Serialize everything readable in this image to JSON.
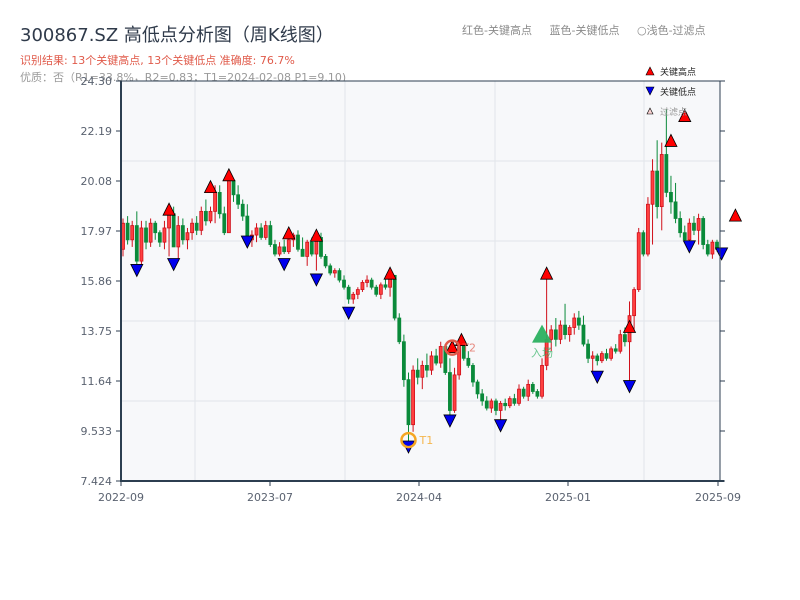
{
  "header": {
    "title": "300867.SZ 高低点分析图（周K线图）",
    "result_line": "识别结果: 13个关键高点, 13个关键低点   准确度: 76.7%",
    "quality_line": "优质：否（R1=33.8%，R2=0.83；T1=2024-02-08 P1=9.10)"
  },
  "top_legend": {
    "items": [
      "红色-关键高点",
      "蓝色-关键低点",
      "○浅色-过滤点"
    ]
  },
  "plot_legend": {
    "items": [
      {
        "label": "关键高点",
        "marker": "triangle-up",
        "color": "#ff0000"
      },
      {
        "label": "关键低点",
        "marker": "triangle-down",
        "color": "#0000ee"
      },
      {
        "label": "过滤点",
        "marker": "triangle-up-outline",
        "color": "#f4b4b4"
      }
    ]
  },
  "colors": {
    "up": "#d0101a",
    "down": "#0a8a3a",
    "grid": "#e2e5ea",
    "plot_bg": "#f7f8fa",
    "axis": "#2c3e50",
    "t1": "#f5a623",
    "t2": "#e05a4a",
    "entry": "#2bb060"
  },
  "annotations": {
    "t1_label": "T1",
    "t2_label": "T2",
    "entry_label": "入场"
  },
  "chart_data": {
    "type": "candlestick",
    "title": "300867.SZ 高低点分析图（周K线图）",
    "xlabel": "",
    "ylabel": "",
    "ylim": [
      7.424,
      24.3
    ],
    "yticks": [
      "24.30",
      "22.19",
      "20.08",
      "17.97",
      "15.86",
      "13.75",
      "11.64",
      "9.533",
      "7.424"
    ],
    "xticks": [
      "2022-09",
      "2023-07",
      "2024-04",
      "2025-01",
      "2025-09"
    ],
    "grid": true,
    "legend_position": "upper right",
    "candles_note": "weekly OHLC approximations [open, high, low, close], x index 0..N",
    "candles": [
      [
        17.2,
        18.5,
        16.9,
        18.3
      ],
      [
        18.3,
        18.6,
        17.4,
        17.6
      ],
      [
        17.6,
        18.4,
        17.3,
        18.2
      ],
      [
        18.2,
        18.8,
        16.4,
        16.7
      ],
      [
        16.7,
        18.4,
        16.5,
        18.1
      ],
      [
        18.1,
        18.4,
        17.2,
        17.5
      ],
      [
        17.5,
        18.5,
        17.3,
        18.3
      ],
      [
        18.3,
        18.4,
        17.6,
        17.9
      ],
      [
        17.9,
        18.0,
        17.3,
        17.5
      ],
      [
        17.5,
        18.4,
        17.2,
        18.1
      ],
      [
        18.1,
        19.0,
        16.9,
        18.7
      ],
      [
        18.7,
        19.0,
        17.5,
        17.3
      ],
      [
        17.3,
        18.6,
        16.7,
        18.2
      ],
      [
        18.2,
        18.5,
        17.4,
        17.6
      ],
      [
        17.6,
        18.1,
        17.2,
        17.9
      ],
      [
        17.9,
        18.5,
        17.6,
        18.3
      ],
      [
        18.3,
        18.6,
        17.8,
        18.0
      ],
      [
        18.0,
        19.0,
        17.8,
        18.8
      ],
      [
        18.8,
        19.3,
        18.2,
        18.4
      ],
      [
        18.4,
        19.0,
        18.3,
        18.8
      ],
      [
        18.8,
        19.9,
        18.3,
        19.6
      ],
      [
        19.6,
        19.9,
        18.5,
        18.7
      ],
      [
        18.7,
        19.0,
        17.8,
        17.9
      ],
      [
        17.9,
        20.4,
        17.9,
        20.1
      ],
      [
        20.1,
        20.2,
        19.2,
        19.5
      ],
      [
        19.5,
        19.9,
        18.9,
        19.1
      ],
      [
        19.1,
        19.3,
        18.4,
        18.6
      ],
      [
        18.6,
        19.1,
        17.5,
        17.6
      ],
      [
        17.6,
        18.0,
        17.3,
        17.8
      ],
      [
        17.8,
        18.3,
        17.5,
        18.1
      ],
      [
        18.1,
        18.3,
        17.6,
        17.7
      ],
      [
        17.7,
        18.4,
        17.6,
        18.2
      ],
      [
        18.2,
        18.4,
        17.3,
        17.4
      ],
      [
        17.4,
        17.6,
        16.9,
        17.0
      ],
      [
        17.0,
        17.5,
        16.9,
        17.3
      ],
      [
        17.3,
        17.6,
        17.0,
        17.1
      ],
      [
        17.1,
        17.8,
        17.0,
        17.6
      ],
      [
        17.6,
        17.9,
        17.3,
        17.8
      ],
      [
        17.8,
        18.0,
        17.1,
        17.2
      ],
      [
        17.2,
        17.7,
        16.9,
        16.9
      ],
      [
        16.9,
        17.6,
        16.5,
        17.5
      ],
      [
        17.5,
        17.7,
        16.9,
        17.0
      ],
      [
        17.0,
        17.9,
        16.3,
        17.7
      ],
      [
        17.7,
        17.9,
        16.8,
        16.9
      ],
      [
        16.9,
        17.0,
        16.4,
        16.5
      ],
      [
        16.5,
        16.6,
        16.1,
        16.2
      ],
      [
        16.2,
        16.4,
        16.0,
        16.3
      ],
      [
        16.3,
        16.4,
        15.8,
        15.9
      ],
      [
        15.9,
        16.1,
        15.5,
        15.6
      ],
      [
        15.6,
        15.7,
        14.9,
        15.1
      ],
      [
        15.1,
        15.4,
        14.9,
        15.3
      ],
      [
        15.3,
        15.6,
        15.1,
        15.5
      ],
      [
        15.5,
        15.9,
        15.4,
        15.8
      ],
      [
        15.8,
        16.1,
        15.6,
        15.9
      ],
      [
        15.9,
        16.0,
        15.5,
        15.6
      ],
      [
        15.6,
        15.7,
        15.2,
        15.3
      ],
      [
        15.3,
        15.8,
        15.1,
        15.7
      ],
      [
        15.7,
        16.0,
        15.5,
        15.6
      ],
      [
        15.6,
        16.2,
        15.2,
        16.1
      ],
      [
        16.1,
        16.1,
        14.2,
        14.3
      ],
      [
        14.3,
        14.5,
        13.2,
        13.3
      ],
      [
        13.3,
        13.6,
        11.4,
        11.7
      ],
      [
        11.7,
        12.0,
        9.1,
        9.8
      ],
      [
        9.8,
        12.3,
        9.5,
        12.1
      ],
      [
        12.1,
        12.6,
        11.5,
        11.8
      ],
      [
        11.8,
        12.5,
        11.3,
        12.3
      ],
      [
        12.3,
        12.8,
        11.8,
        12.1
      ],
      [
        12.1,
        12.9,
        11.9,
        12.7
      ],
      [
        12.7,
        13.0,
        12.3,
        12.4
      ],
      [
        12.4,
        13.3,
        12.2,
        13.1
      ],
      [
        13.1,
        13.2,
        11.9,
        12.0
      ],
      [
        12.0,
        12.6,
        10.2,
        10.4
      ],
      [
        10.4,
        12.2,
        10.3,
        11.9
      ],
      [
        11.9,
        13.4,
        11.7,
        13.2
      ],
      [
        13.2,
        13.3,
        12.5,
        12.6
      ],
      [
        12.6,
        12.9,
        12.2,
        12.3
      ],
      [
        12.3,
        12.4,
        11.4,
        11.6
      ],
      [
        11.6,
        11.7,
        10.9,
        11.1
      ],
      [
        11.1,
        11.3,
        10.6,
        10.8
      ],
      [
        10.8,
        11.0,
        10.4,
        10.5
      ],
      [
        10.5,
        10.9,
        10.3,
        10.8
      ],
      [
        10.8,
        10.9,
        10.2,
        10.4
      ],
      [
        10.4,
        10.8,
        10.0,
        10.7
      ],
      [
        10.7,
        10.9,
        10.4,
        10.6
      ],
      [
        10.6,
        11.0,
        10.5,
        10.9
      ],
      [
        10.9,
        11.1,
        10.6,
        10.7
      ],
      [
        10.7,
        11.5,
        10.6,
        11.3
      ],
      [
        11.3,
        11.4,
        10.9,
        11.0
      ],
      [
        11.0,
        11.7,
        10.8,
        11.5
      ],
      [
        11.5,
        11.6,
        11.1,
        11.2
      ],
      [
        11.2,
        11.3,
        10.9,
        11.0
      ],
      [
        11.0,
        12.6,
        10.9,
        12.3
      ],
      [
        12.3,
        16.1,
        12.1,
        13.4
      ],
      [
        13.4,
        14.0,
        12.9,
        13.8
      ],
      [
        13.8,
        14.3,
        13.1,
        13.4
      ],
      [
        13.4,
        14.2,
        13.2,
        14.0
      ],
      [
        14.0,
        14.9,
        13.4,
        13.6
      ],
      [
        13.6,
        14.0,
        13.3,
        13.9
      ],
      [
        13.9,
        14.5,
        13.6,
        14.3
      ],
      [
        14.3,
        14.6,
        13.8,
        14.0
      ],
      [
        14.0,
        14.4,
        13.1,
        13.2
      ],
      [
        13.2,
        13.4,
        12.4,
        12.6
      ],
      [
        12.6,
        12.9,
        12.0,
        12.7
      ],
      [
        12.7,
        12.8,
        12.3,
        12.5
      ],
      [
        12.5,
        12.9,
        12.4,
        12.8
      ],
      [
        12.8,
        13.0,
        12.5,
        12.6
      ],
      [
        12.6,
        13.1,
        12.5,
        13.0
      ],
      [
        13.0,
        13.2,
        12.8,
        12.9
      ],
      [
        12.9,
        13.8,
        12.8,
        13.6
      ],
      [
        13.6,
        13.9,
        13.1,
        13.3
      ],
      [
        13.3,
        15.0,
        11.6,
        14.4
      ],
      [
        14.4,
        15.6,
        13.8,
        15.5
      ],
      [
        15.5,
        18.1,
        15.4,
        17.9
      ],
      [
        17.9,
        18.0,
        16.9,
        17.0
      ],
      [
        17.0,
        19.4,
        16.9,
        19.1
      ],
      [
        19.1,
        21.0,
        17.4,
        20.5
      ],
      [
        20.5,
        21.8,
        18.5,
        19.0
      ],
      [
        19.0,
        21.7,
        18.0,
        21.2
      ],
      [
        21.2,
        23.1,
        19.4,
        19.6
      ],
      [
        19.6,
        20.3,
        18.7,
        19.2
      ],
      [
        19.2,
        20.0,
        18.3,
        18.5
      ],
      [
        18.5,
        18.8,
        17.7,
        17.9
      ],
      [
        17.9,
        18.2,
        17.5,
        17.6
      ],
      [
        17.6,
        18.5,
        17.4,
        18.3
      ],
      [
        18.3,
        18.6,
        17.8,
        18.0
      ],
      [
        18.0,
        18.7,
        17.4,
        18.5
      ],
      [
        18.5,
        18.6,
        17.2,
        17.4
      ],
      [
        17.4,
        17.6,
        16.9,
        17.0
      ],
      [
        17.0,
        17.6,
        16.8,
        17.5
      ],
      [
        17.5,
        17.6,
        17.1,
        17.2
      ]
    ],
    "key_highs": [
      {
        "label": "H",
        "x": 10,
        "y": 18.85
      },
      {
        "label": "H",
        "x": 19,
        "y": 19.8
      },
      {
        "label": "H",
        "x": 23,
        "y": 20.3
      },
      {
        "label": "H",
        "x": 36,
        "y": 17.85
      },
      {
        "label": "H",
        "x": 42,
        "y": 17.75
      },
      {
        "label": "H",
        "x": 58,
        "y": 16.15
      },
      {
        "label": "T2",
        "x": 73,
        "y": 13.05
      },
      {
        "label": "H",
        "x": 73.5,
        "y": 13.35
      },
      {
        "label": "H",
        "x": 92,
        "y": 16.15
      },
      {
        "label": "H",
        "x": 110,
        "y": 13.9
      },
      {
        "label": "H",
        "x": 119,
        "y": 21.75
      },
      {
        "label": "H",
        "x": 122,
        "y": 22.8
      },
      {
        "label": "H",
        "x": 133,
        "y": 18.6
      }
    ],
    "key_lows": [
      {
        "x": 3,
        "y": 16.35
      },
      {
        "x": 11,
        "y": 16.6
      },
      {
        "x": 27,
        "y": 17.55
      },
      {
        "x": 35,
        "y": 16.6
      },
      {
        "x": 42,
        "y": 15.95
      },
      {
        "x": 49,
        "y": 14.55
      },
      {
        "x": 62,
        "y": 8.9
      },
      {
        "x": 71,
        "y": 10.0
      },
      {
        "x": 82,
        "y": 9.8
      },
      {
        "x": 103,
        "y": 11.85
      },
      {
        "x": 110,
        "y": 11.45
      },
      {
        "x": 123,
        "y": 17.35
      },
      {
        "x": 130,
        "y": 17.05
      }
    ],
    "t1": {
      "x": 62,
      "y": 9.15,
      "label": "T1"
    },
    "t2": {
      "x": 71.5,
      "y": 13.05,
      "label": "T2"
    },
    "entry": {
      "x": 91,
      "y": 13.6,
      "label": "入场"
    }
  }
}
